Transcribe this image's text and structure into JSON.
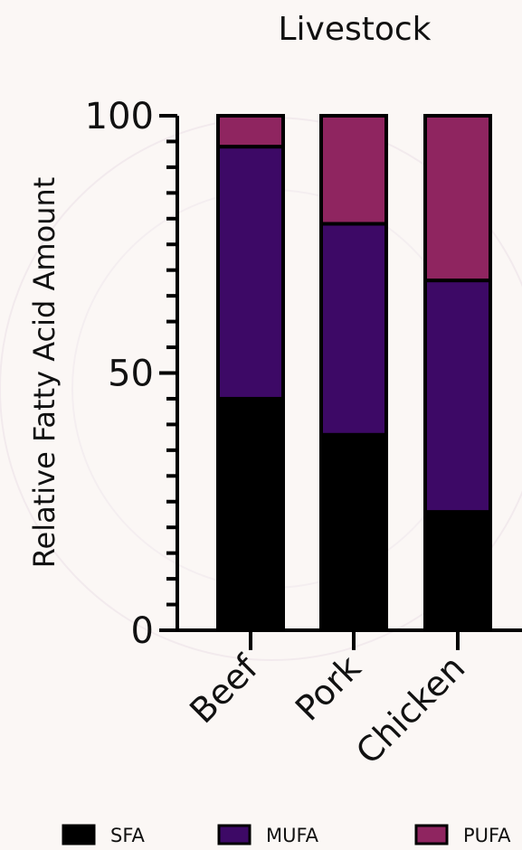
{
  "chart_data": {
    "type": "bar",
    "stacked": true,
    "title": "Livestock",
    "xlabel": "",
    "ylabel": "Relative Fatty Acid Amount",
    "ylim": [
      0,
      100
    ],
    "yticks": [
      0,
      50,
      100
    ],
    "categories": [
      "Beef",
      "Pork",
      "Chicken"
    ],
    "series": [
      {
        "name": "SFA",
        "values": [
          45,
          38,
          23
        ],
        "color": "#000000"
      },
      {
        "name": "MUFA",
        "values": [
          49,
          41,
          45
        ],
        "color": "#3d0966"
      },
      {
        "name": "PUFA",
        "values": [
          6,
          21,
          32
        ],
        "color": "#8f2560"
      }
    ],
    "grid": false,
    "legend_position": "bottom"
  }
}
